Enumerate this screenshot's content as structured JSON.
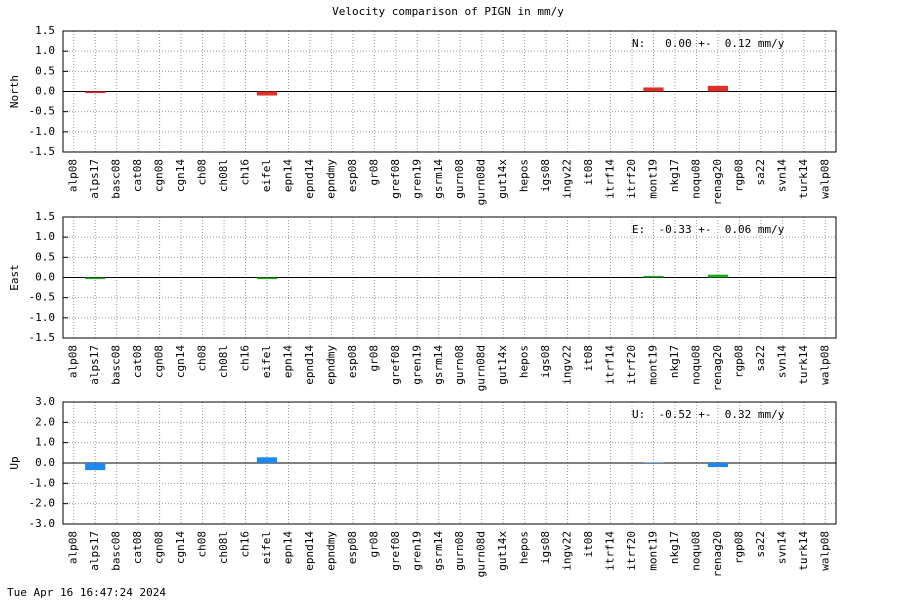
{
  "title": "Velocity comparison of PIGN in mm/y",
  "timestamp": "Tue Apr 16 16:47:24 2024",
  "chart_data": [
    {
      "type": "bar",
      "ylabel": "North",
      "annotation": "N:   0.00 +-  0.12 mm/y",
      "color": "#e0302a",
      "grid": true,
      "categories": [
        "alp08",
        "alps17",
        "basc08",
        "cat08",
        "cgn08",
        "cgn14",
        "ch08",
        "ch08l",
        "ch16",
        "eifel",
        "epn14",
        "epnd14",
        "epndmy",
        "esp08",
        "gr08",
        "gref08",
        "gren19",
        "gsrm14",
        "gurn08",
        "gurn08d",
        "gut14x",
        "hepos",
        "igs08",
        "ingv22",
        "it08",
        "itrf14",
        "itrf20",
        "mont19",
        "nkg17",
        "noqu08",
        "renag20",
        "rgp08",
        "sa22",
        "svn14",
        "turk14",
        "walp08"
      ],
      "values": [
        null,
        -0.04,
        null,
        null,
        null,
        null,
        null,
        null,
        null,
        -0.1,
        null,
        null,
        null,
        null,
        null,
        null,
        null,
        null,
        null,
        null,
        null,
        null,
        null,
        null,
        null,
        null,
        null,
        0.1,
        null,
        null,
        0.14,
        null,
        null,
        null,
        null,
        null
      ],
      "ylim": [
        -1.5,
        1.5
      ],
      "yticks": [
        {
          "value": -1.5,
          "label": "-1.5"
        },
        {
          "value": -1,
          "label": "-1.0"
        },
        {
          "value": -0.5,
          "label": "-0.5"
        },
        {
          "value": 0,
          "label": "0.0"
        },
        {
          "value": 0.5,
          "label": "0.5"
        },
        {
          "value": 1,
          "label": "1.0"
        },
        {
          "value": 1.5,
          "label": "1.5"
        }
      ]
    },
    {
      "type": "bar",
      "ylabel": "East",
      "annotation": "E:  -0.33 +-  0.06 mm/y",
      "color": "#22a822",
      "grid": true,
      "categories": [
        "alp08",
        "alps17",
        "basc08",
        "cat08",
        "cgn08",
        "cgn14",
        "ch08",
        "ch08l",
        "ch16",
        "eifel",
        "epn14",
        "epnd14",
        "epndmy",
        "esp08",
        "gr08",
        "gref08",
        "gren19",
        "gsrm14",
        "gurn08",
        "gurn08d",
        "gut14x",
        "hepos",
        "igs08",
        "ingv22",
        "it08",
        "itrf14",
        "itrf20",
        "mont19",
        "nkg17",
        "noqu08",
        "renag20",
        "rgp08",
        "sa22",
        "svn14",
        "turk14",
        "walp08"
      ],
      "values": [
        null,
        -0.04,
        null,
        null,
        null,
        null,
        null,
        null,
        null,
        -0.04,
        null,
        null,
        null,
        null,
        null,
        null,
        null,
        null,
        null,
        null,
        null,
        null,
        null,
        null,
        null,
        null,
        null,
        0.04,
        null,
        null,
        0.07,
        null,
        null,
        null,
        null,
        null
      ],
      "ylim": [
        -1.5,
        1.5
      ],
      "yticks": [
        {
          "value": -1.5,
          "label": "-1.5"
        },
        {
          "value": -1,
          "label": "-1.0"
        },
        {
          "value": -0.5,
          "label": "-0.5"
        },
        {
          "value": 0,
          "label": "0.0"
        },
        {
          "value": 0.5,
          "label": "0.5"
        },
        {
          "value": 1,
          "label": "1.0"
        },
        {
          "value": 1.5,
          "label": "1.5"
        }
      ]
    },
    {
      "type": "bar",
      "ylabel": "Up",
      "annotation": "U:  -0.52 +-  0.32 mm/y",
      "color": "#1e88ee",
      "grid": true,
      "categories": [
        "alp08",
        "alps17",
        "basc08",
        "cat08",
        "cgn08",
        "cgn14",
        "ch08",
        "ch08l",
        "ch16",
        "eifel",
        "epn14",
        "epnd14",
        "epndmy",
        "esp08",
        "gr08",
        "gref08",
        "gren19",
        "gsrm14",
        "gurn08",
        "gurn08d",
        "gut14x",
        "hepos",
        "igs08",
        "ingv22",
        "it08",
        "itrf14",
        "itrf20",
        "mont19",
        "nkg17",
        "noqu08",
        "renag20",
        "rgp08",
        "sa22",
        "svn14",
        "turk14",
        "walp08"
      ],
      "values": [
        null,
        -0.35,
        null,
        null,
        null,
        null,
        null,
        null,
        null,
        0.28,
        null,
        null,
        null,
        null,
        null,
        null,
        null,
        null,
        null,
        null,
        null,
        null,
        null,
        null,
        null,
        null,
        null,
        0.03,
        null,
        null,
        -0.2,
        null,
        null,
        null,
        null,
        null
      ],
      "ylim": [
        -3,
        3
      ],
      "yticks": [
        {
          "value": -3,
          "label": "-3.0"
        },
        {
          "value": -2,
          "label": "-2.0"
        },
        {
          "value": -1,
          "label": "-1.0"
        },
        {
          "value": 0,
          "label": "0.0"
        },
        {
          "value": 1,
          "label": "1.0"
        },
        {
          "value": 2,
          "label": "2.0"
        },
        {
          "value": 3,
          "label": "3.0"
        }
      ]
    }
  ]
}
